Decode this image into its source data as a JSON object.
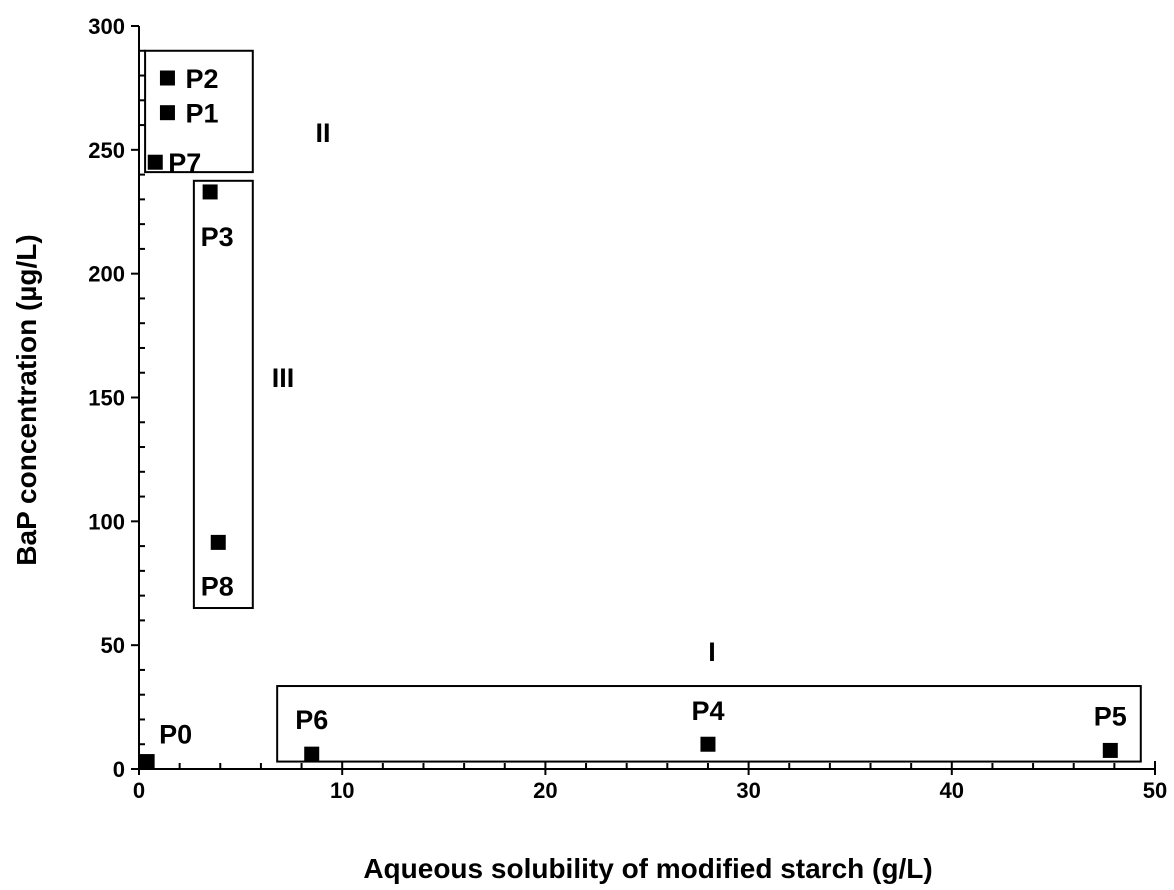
{
  "chart_data": {
    "type": "scatter",
    "title": "",
    "xlabel": "Aqueous solubility of modified starch (g/L)",
    "ylabel": "BaP concentration (µg/L)",
    "xlim": [
      0,
      50
    ],
    "ylim": [
      0,
      300
    ],
    "x_ticks": [
      "0",
      "10",
      "20",
      "30",
      "40",
      "50"
    ],
    "y_ticks": [
      "0",
      "50",
      "100",
      "150",
      "200",
      "250",
      "300"
    ],
    "grid": false,
    "marker": "square",
    "marker_color": "#000000",
    "points": [
      {
        "label": "P0",
        "x": 0.4,
        "y": 3
      },
      {
        "label": "P1",
        "x": 1.4,
        "y": 265
      },
      {
        "label": "P2",
        "x": 1.4,
        "y": 279
      },
      {
        "label": "P3",
        "x": 3.5,
        "y": 233
      },
      {
        "label": "P4",
        "x": 28.0,
        "y": 10
      },
      {
        "label": "P5",
        "x": 47.8,
        "y": 7.5
      },
      {
        "label": "P6",
        "x": 8.5,
        "y": 6
      },
      {
        "label": "P7",
        "x": 0.8,
        "y": 245
      },
      {
        "label": "P8",
        "x": 3.9,
        "y": 91.5
      }
    ],
    "regions": [
      {
        "label": "I",
        "x_range": [
          6.8,
          49.3
        ],
        "y_range": [
          3,
          33.5
        ]
      },
      {
        "label": "II",
        "x_range": [
          0.3,
          5.6
        ],
        "y_range": [
          241,
          290
        ]
      },
      {
        "label": "III",
        "x_range": [
          2.7,
          5.6
        ],
        "y_range": [
          65,
          237.5
        ]
      }
    ]
  }
}
